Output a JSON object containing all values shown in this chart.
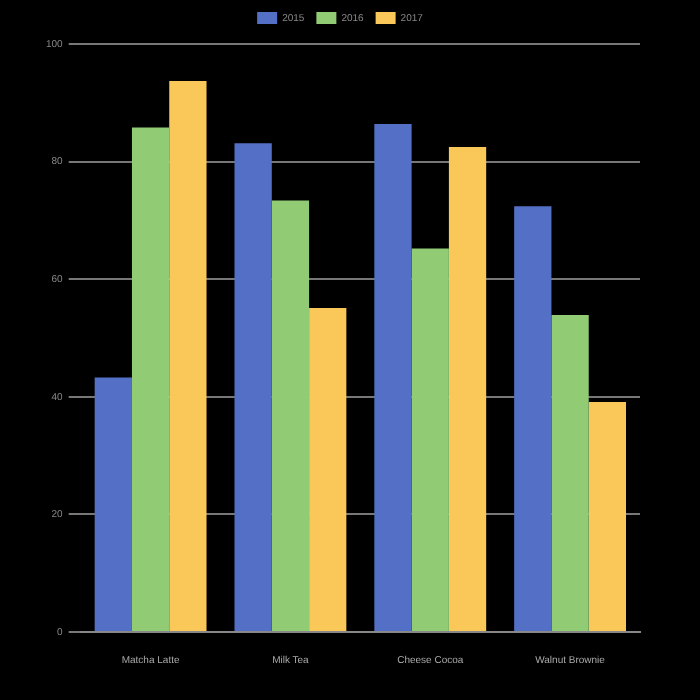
{
  "chart_data": {
    "type": "bar",
    "categories": [
      "Matcha Latte",
      "Milk Tea",
      "Cheese Cocoa",
      "Walnut Brownie"
    ],
    "series": [
      {
        "name": "2015",
        "color": "#5470c6",
        "values": [
          43.3,
          83.1,
          86.4,
          72.4
        ]
      },
      {
        "name": "2016",
        "color": "#91cc75",
        "values": [
          85.8,
          73.4,
          65.2,
          53.9
        ]
      },
      {
        "name": "2017",
        "color": "#fac858",
        "values": [
          93.7,
          55.1,
          82.5,
          39.1
        ]
      }
    ],
    "ylim": [
      0,
      100
    ],
    "yticks": [
      0,
      20,
      40,
      60,
      80,
      100
    ],
    "grid": "y",
    "legend": "top"
  }
}
